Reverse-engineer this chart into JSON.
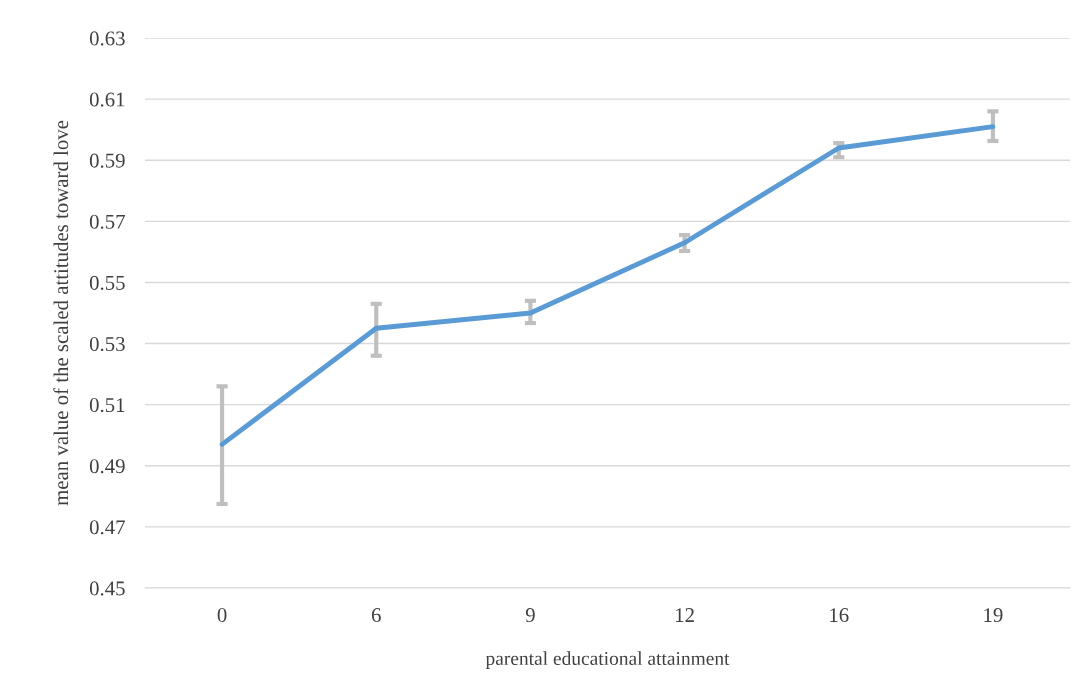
{
  "chart_data": {
    "type": "line",
    "xlabel": "parental educational attainment",
    "ylabel": "mean value of the scaled attitudes toward love",
    "categories": [
      "0",
      "6",
      "9",
      "12",
      "16",
      "19"
    ],
    "series": [
      {
        "color": "#5b9bd5",
        "values": [
          0.497,
          0.535,
          0.54,
          0.563,
          0.594,
          0.601
        ],
        "errors": [
          [
            0.4775,
            0.516
          ],
          [
            0.526,
            0.543
          ],
          [
            0.5367,
            0.544
          ],
          [
            0.5603,
            0.5655
          ],
          [
            0.591,
            0.5956
          ],
          [
            0.5963,
            0.606
          ]
        ]
      }
    ],
    "ylim": [
      0.45,
      0.63
    ],
    "yticks": [
      0.45,
      0.47,
      0.49,
      0.51,
      0.53,
      0.55,
      0.57,
      0.59,
      0.61,
      0.63
    ],
    "grid": "y",
    "marker": "none",
    "line_style": "solid"
  }
}
